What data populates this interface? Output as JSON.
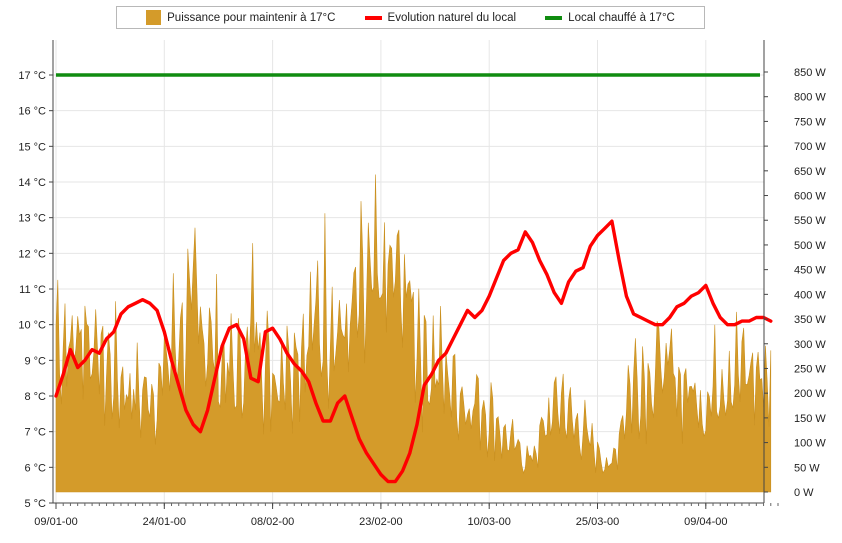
{
  "chart_data": {
    "type": "line",
    "legend": [
      {
        "label": "Puissance pour maintenir à 17°C",
        "kind": "area",
        "color": "#d49b2a"
      },
      {
        "label": "Evolution naturel du local",
        "kind": "line",
        "color": "#ff0000"
      },
      {
        "label": "Local chauffé à 17°C",
        "kind": "line",
        "color": "#108c10"
      }
    ],
    "x_ticks": [
      "09/01-00",
      "24/01-00",
      "08/02-00",
      "23/02-00",
      "10/03-00",
      "25/03-00",
      "09/04-00"
    ],
    "x_range_days": [
      0,
      102
    ],
    "y_left": {
      "min": 5,
      "max": 17,
      "ticks": [
        "5 °C",
        "6 °C",
        "7 °C",
        "8 °C",
        "9 °C",
        "10 °C",
        "11 °C",
        "12 °C",
        "13 °C",
        "14 °C",
        "15 °C",
        "16 °C",
        "17 °C"
      ]
    },
    "y_right": {
      "min": 0,
      "max": 850,
      "ticks": [
        "0 W",
        "50 W",
        "100 W",
        "150 W",
        "200 W",
        "250 W",
        "300 W",
        "350 W",
        "400 W",
        "450 W",
        "500 W",
        "550 W",
        "600 W",
        "650 W",
        "700 W",
        "750 W",
        "800 W",
        "850 W"
      ]
    },
    "grid": true,
    "series": [
      {
        "name": "Evolution naturel du local",
        "axis": "left",
        "x": [
          0,
          1,
          2,
          3,
          4,
          5,
          6,
          7,
          8,
          9,
          10,
          11,
          12,
          13,
          14,
          15,
          16,
          17,
          18,
          19,
          20,
          21,
          22,
          23,
          24,
          25,
          26,
          27,
          28,
          29,
          30,
          31,
          32,
          33,
          34,
          35,
          36,
          37,
          38,
          39,
          40,
          41,
          42,
          43,
          44,
          45,
          46,
          47,
          48,
          49,
          50,
          51,
          52,
          53,
          54,
          55,
          56,
          57,
          58,
          59,
          60,
          61,
          62,
          63,
          64,
          65,
          66,
          67,
          68,
          69,
          70,
          71,
          72,
          73,
          74,
          75,
          76,
          77,
          78,
          79,
          80,
          81,
          82,
          83,
          84,
          85,
          86,
          87,
          88,
          89,
          90,
          91,
          92,
          93,
          94,
          95,
          96,
          97,
          98,
          99
        ],
        "y": [
          8.0,
          8.6,
          9.3,
          8.8,
          9.0,
          9.3,
          9.2,
          9.6,
          9.8,
          10.3,
          10.5,
          10.6,
          10.7,
          10.6,
          10.4,
          9.8,
          9.0,
          8.3,
          7.6,
          7.2,
          7.0,
          7.6,
          8.5,
          9.4,
          9.9,
          10.0,
          9.6,
          8.5,
          8.4,
          9.8,
          9.9,
          9.6,
          9.2,
          8.9,
          8.7,
          8.4,
          7.8,
          7.3,
          7.3,
          7.8,
          8.0,
          7.4,
          6.8,
          6.4,
          6.1,
          5.8,
          5.6,
          5.6,
          5.9,
          6.4,
          7.2,
          8.3,
          8.6,
          9.0,
          9.2,
          9.6,
          10.0,
          10.4,
          10.2,
          10.4,
          10.8,
          11.3,
          11.8,
          12.0,
          12.1,
          12.6,
          12.3,
          11.8,
          11.4,
          10.9,
          10.6,
          11.2,
          11.5,
          11.6,
          12.2,
          12.5,
          12.7,
          12.9,
          11.8,
          10.8,
          10.3,
          10.2,
          10.1,
          10.0,
          10.0,
          10.2,
          10.5,
          10.6,
          10.8,
          10.9,
          11.1,
          10.6,
          10.2,
          10.0,
          10.0,
          10.1,
          10.1,
          10.2,
          10.2,
          10.1
        ]
      },
      {
        "name": "Local chauffé à 17°C",
        "axis": "left",
        "x": [
          0,
          102
        ],
        "y": [
          17,
          17
        ]
      },
      {
        "name": "Puissance pour maintenir à 17°C",
        "axis": "right",
        "x": [
          0,
          1,
          2,
          3,
          4,
          5,
          6,
          7,
          8,
          9,
          10,
          11,
          12,
          13,
          14,
          15,
          16,
          17,
          18,
          19,
          20,
          21,
          22,
          23,
          24,
          25,
          26,
          27,
          28,
          29,
          30,
          31,
          32,
          33,
          34,
          35,
          36,
          37,
          38,
          39,
          40,
          41,
          42,
          43,
          44,
          45,
          46,
          47,
          48,
          49,
          50,
          51,
          52,
          53,
          54,
          55,
          56,
          57,
          58,
          59,
          60,
          61,
          62,
          63,
          64,
          65,
          66,
          67,
          68,
          69,
          70,
          71,
          72,
          73,
          74,
          75,
          76,
          77,
          78,
          79,
          80,
          81,
          82,
          83,
          84,
          85,
          86,
          87,
          88,
          89,
          90,
          91,
          92,
          93,
          94,
          95,
          96,
          97,
          98,
          99
        ],
        "y": [
          420,
          380,
          360,
          400,
          420,
          380,
          330,
          310,
          310,
          280,
          260,
          250,
          240,
          250,
          260,
          300,
          360,
          400,
          420,
          440,
          450,
          400,
          360,
          320,
          300,
          290,
          330,
          400,
          460,
          310,
          300,
          320,
          350,
          370,
          370,
          380,
          420,
          460,
          470,
          420,
          380,
          430,
          460,
          480,
          500,
          510,
          520,
          530,
          520,
          480,
          420,
          340,
          330,
          310,
          290,
          270,
          250,
          220,
          230,
          220,
          200,
          180,
          140,
          120,
          110,
          80,
          90,
          130,
          170,
          210,
          240,
          190,
          170,
          160,
          120,
          100,
          80,
          60,
          150,
          240,
          280,
          290,
          300,
          310,
          320,
          290,
          280,
          270,
          250,
          240,
          220,
          260,
          300,
          310,
          310,
          300,
          300,
          290,
          290,
          300
        ]
      }
    ]
  }
}
